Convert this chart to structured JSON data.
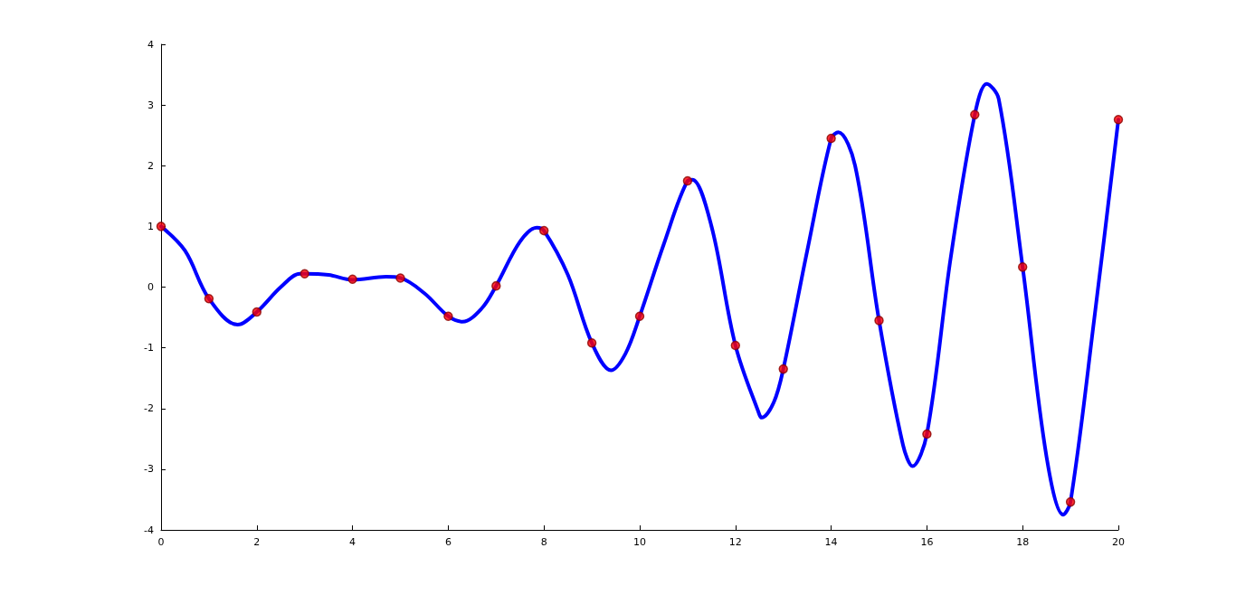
{
  "chart_data": {
    "type": "line",
    "xlim": [
      0,
      20
    ],
    "xticks": [
      0,
      2,
      4,
      6,
      8,
      10,
      12,
      14,
      16,
      18,
      20
    ],
    "ylim": [
      -4,
      4
    ],
    "yticks": [
      -4,
      -3,
      -2,
      -1,
      0,
      1,
      2,
      3,
      4
    ],
    "grid": false,
    "line_style": "solid",
    "series": [
      {
        "color": "#0000ff",
        "marker": "none",
        "x": [
          0,
          0.5,
          1,
          1.6,
          2,
          2.5,
          2.9,
          3,
          3.5,
          4,
          4.7,
          5,
          5.5,
          6,
          6.3,
          6.7,
          7,
          7.5,
          7.85,
          8,
          8.5,
          9,
          9.4,
          9.7,
          10,
          10.5,
          11,
          11.1,
          11.5,
          12,
          12.5,
          12.55,
          12.8,
          13,
          13.5,
          14,
          14.15,
          14.5,
          15,
          15.5,
          15.7,
          16,
          16.5,
          17,
          17.25,
          17.5,
          18,
          18.5,
          18.85,
          19,
          19.5,
          20
        ],
        "values": [
          1.0,
          0.6,
          -0.19,
          -0.62,
          -0.41,
          0.0,
          0.22,
          0.22,
          0.2,
          0.12,
          0.17,
          0.15,
          -0.1,
          -0.48,
          -0.57,
          -0.35,
          0.02,
          0.75,
          0.98,
          0.93,
          0.2,
          -0.92,
          -1.37,
          -1.1,
          -0.48,
          0.7,
          1.75,
          1.77,
          1.0,
          -0.96,
          -2.1,
          -2.15,
          -1.9,
          -1.35,
          0.6,
          2.45,
          2.55,
          2.0,
          -0.55,
          -2.6,
          -2.95,
          -2.42,
          0.5,
          2.84,
          3.35,
          3.1,
          0.33,
          -2.8,
          -3.75,
          -3.54,
          -0.5,
          2.76
        ]
      },
      {
        "type": "scatter",
        "color": "#ff0000",
        "marker": "circle",
        "x": [
          0,
          1,
          2,
          3,
          4,
          5,
          6,
          7,
          8,
          9,
          10,
          11,
          12,
          13,
          14,
          15,
          16,
          17,
          18,
          19,
          20
        ],
        "values": [
          1.0,
          -0.19,
          -0.41,
          0.22,
          0.13,
          0.15,
          -0.48,
          0.02,
          0.93,
          -0.92,
          -0.48,
          1.75,
          -0.96,
          -1.35,
          2.45,
          -0.55,
          -2.42,
          2.84,
          0.33,
          -3.54,
          2.76
        ]
      }
    ]
  }
}
